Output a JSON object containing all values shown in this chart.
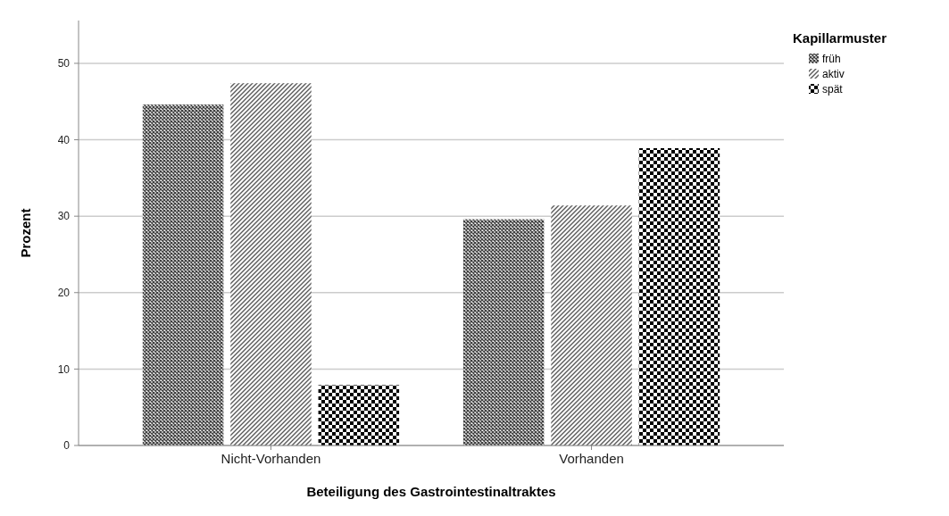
{
  "chart_data": {
    "type": "bar",
    "xlabel": "Beteiligung des Gastrointestinaltraktes",
    "ylabel": "Prozent",
    "legend_title": "Kapillarmuster",
    "categories": [
      "Nicht-Vorhanden",
      "Vorhanden"
    ],
    "series": [
      {
        "name": "früh",
        "color": "#404040",
        "values": [
          44.6,
          29.6
        ]
      },
      {
        "name": "aktiv",
        "color": "#595959",
        "values": [
          47.4,
          31.4
        ]
      },
      {
        "name": "spät",
        "color": "#000000",
        "values": [
          7.9,
          38.9
        ]
      }
    ],
    "ylim": [
      0,
      55.6
    ],
    "yticks": [
      0,
      10,
      20,
      30,
      40,
      50
    ],
    "grid": "y",
    "legend": "top right"
  }
}
